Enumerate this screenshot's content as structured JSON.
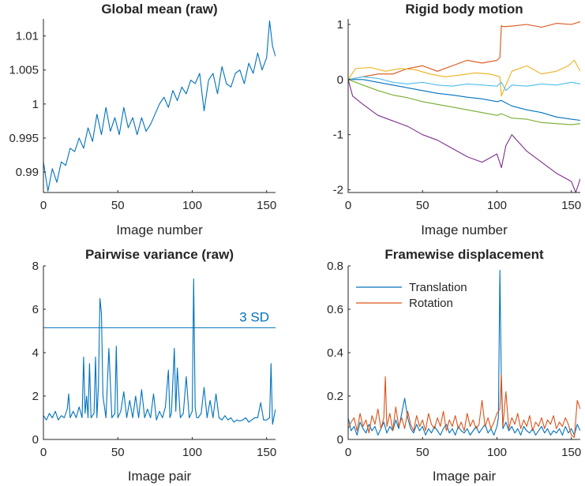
{
  "colors": {
    "blue": "#0072BD",
    "orange": "#D95319",
    "yellow": "#EDB120",
    "purple": "#7E2F8E",
    "green": "#77AC30",
    "lightblue": "#4DBEEE",
    "axis": "#262626"
  },
  "chart_data": [
    {
      "id": "global-mean",
      "type": "line",
      "title": "Global mean (raw)",
      "xlabel": "Image number",
      "ylabel": "",
      "xlim": [
        0,
        156
      ],
      "ylim": [
        0.987,
        1.0125
      ],
      "xticks": [
        0,
        50,
        100,
        150
      ],
      "xtick_labels": [
        "0",
        "50",
        "100",
        "150"
      ],
      "yticks": [
        0.99,
        0.995,
        1,
        1.005,
        1.01
      ],
      "ytick_labels": [
        "0.99",
        "0.995",
        "1",
        "1.005",
        "1.01"
      ],
      "series": [
        {
          "color": "#0072BD",
          "x": [
            0,
            3,
            6,
            9,
            12,
            15,
            18,
            21,
            24,
            27,
            30,
            33,
            36,
            39,
            42,
            45,
            48,
            51,
            54,
            57,
            60,
            63,
            66,
            69,
            72,
            75,
            78,
            81,
            84,
            87,
            90,
            93,
            96,
            99,
            102,
            105,
            108,
            111,
            114,
            117,
            120,
            123,
            126,
            129,
            132,
            135,
            138,
            141,
            144,
            147,
            150,
            152,
            154,
            156
          ],
          "y": [
            0.9915,
            0.9872,
            0.9905,
            0.9885,
            0.9915,
            0.991,
            0.9935,
            0.993,
            0.995,
            0.9935,
            0.9965,
            0.9945,
            0.9985,
            0.9955,
            0.9995,
            0.996,
            0.998,
            0.9955,
            0.9995,
            0.9965,
            0.998,
            0.9955,
            0.998,
            0.996,
            0.997,
            0.9985,
            1.0,
            1.001,
            0.9995,
            1.002,
            1.0005,
            1.0025,
            1.0015,
            1.0035,
            1.003,
            1.0045,
            0.999,
            1.0035,
            1.0045,
            1.0015,
            1.0055,
            1.003,
            1.0025,
            1.0045,
            1.005,
            1.003,
            1.006,
            1.0045,
            1.0075,
            1.005,
            1.0068,
            1.0122,
            1.0085,
            1.007
          ]
        }
      ]
    },
    {
      "id": "rigid-body-motion",
      "type": "line",
      "title": "Rigid body motion",
      "xlabel": "Image number",
      "ylabel": "",
      "xlim": [
        0,
        156
      ],
      "ylim": [
        -2.05,
        1.1
      ],
      "xticks": [
        0,
        50,
        100,
        150
      ],
      "xtick_labels": [
        "0",
        "50",
        "100",
        "150"
      ],
      "yticks": [
        1,
        0,
        -1,
        -2
      ],
      "ytick_labels": [
        "1",
        "0",
        "-1",
        "-2"
      ],
      "series": [
        {
          "color": "#0072BD",
          "x": [
            0,
            10,
            20,
            30,
            40,
            50,
            60,
            70,
            80,
            90,
            100,
            103,
            110,
            120,
            130,
            140,
            150,
            156
          ],
          "y": [
            0,
            0.0,
            -0.05,
            -0.1,
            -0.15,
            -0.2,
            -0.25,
            -0.28,
            -0.32,
            -0.35,
            -0.4,
            -0.38,
            -0.48,
            -0.55,
            -0.6,
            -0.68,
            -0.72,
            -0.74
          ]
        },
        {
          "color": "#D95319",
          "x": [
            0,
            10,
            20,
            30,
            40,
            50,
            60,
            70,
            80,
            90,
            100,
            102,
            103,
            104,
            110,
            120,
            130,
            140,
            150,
            156
          ],
          "y": [
            0,
            0.05,
            0.1,
            0.1,
            0.2,
            0.25,
            0.15,
            0.25,
            0.35,
            0.3,
            0.35,
            0.4,
            0.98,
            0.96,
            0.97,
            1.0,
            0.95,
            1.02,
            1.0,
            1.05
          ]
        },
        {
          "color": "#EDB120",
          "x": [
            0,
            5,
            15,
            25,
            35,
            45,
            55,
            65,
            75,
            85,
            95,
            102,
            103,
            106,
            110,
            120,
            130,
            140,
            148,
            152,
            156
          ],
          "y": [
            0,
            0.2,
            0.22,
            0.15,
            0.2,
            0.18,
            0.1,
            0.05,
            0.08,
            0.12,
            0.1,
            0.05,
            -0.3,
            -0.1,
            0.15,
            0.25,
            0.1,
            0.15,
            0.25,
            0.35,
            0.15
          ]
        },
        {
          "color": "#7E2F8E",
          "x": [
            0,
            3,
            10,
            20,
            30,
            40,
            50,
            60,
            70,
            80,
            90,
            100,
            103,
            106,
            110,
            115,
            120,
            130,
            140,
            150,
            153,
            156
          ],
          "y": [
            0,
            -0.3,
            -0.45,
            -0.65,
            -0.75,
            -0.85,
            -1.0,
            -1.1,
            -1.25,
            -1.4,
            -1.5,
            -1.35,
            -1.6,
            -1.2,
            -1.0,
            -1.15,
            -1.3,
            -1.5,
            -1.7,
            -1.85,
            -2.05,
            -1.8
          ]
        },
        {
          "color": "#77AC30",
          "x": [
            0,
            10,
            20,
            30,
            40,
            50,
            60,
            70,
            80,
            90,
            100,
            103,
            110,
            120,
            130,
            140,
            150,
            156
          ],
          "y": [
            0,
            -0.1,
            -0.2,
            -0.28,
            -0.33,
            -0.4,
            -0.45,
            -0.5,
            -0.55,
            -0.6,
            -0.65,
            -0.62,
            -0.7,
            -0.72,
            -0.78,
            -0.8,
            -0.82,
            -0.8
          ]
        },
        {
          "color": "#4DBEEE",
          "x": [
            0,
            10,
            20,
            30,
            40,
            50,
            60,
            70,
            80,
            90,
            100,
            103,
            106,
            110,
            120,
            130,
            140,
            150,
            156
          ],
          "y": [
            0,
            0.05,
            0.02,
            -0.05,
            -0.08,
            -0.05,
            -0.1,
            -0.12,
            -0.08,
            -0.1,
            -0.12,
            -0.05,
            -0.2,
            -0.1,
            -0.12,
            -0.08,
            -0.1,
            -0.05,
            -0.08
          ]
        }
      ]
    },
    {
      "id": "pairwise-variance",
      "type": "line",
      "title": "Pairwise variance (raw)",
      "xlabel": "Image pair",
      "ylabel": "",
      "xlim": [
        0,
        156
      ],
      "ylim": [
        0,
        8
      ],
      "xticks": [
        0,
        50,
        100,
        150
      ],
      "xtick_labels": [
        "0",
        "50",
        "100",
        "150"
      ],
      "yticks": [
        0,
        2,
        4,
        6,
        8
      ],
      "ytick_labels": [
        "0",
        "2",
        "4",
        "6",
        "8"
      ],
      "threshold": {
        "value": 5.15,
        "label": "3 SD"
      },
      "series": [
        {
          "color": "#0072BD",
          "x": [
            0,
            2,
            4,
            6,
            8,
            10,
            12,
            14,
            16,
            17,
            18,
            20,
            22,
            24,
            26,
            27,
            28,
            29,
            30,
            31,
            32,
            34,
            35,
            36,
            37,
            38,
            39,
            40,
            42,
            44,
            46,
            48,
            49,
            50,
            52,
            54,
            56,
            58,
            60,
            62,
            64,
            66,
            68,
            70,
            72,
            74,
            76,
            78,
            80,
            82,
            84,
            85,
            86,
            88,
            89,
            90,
            92,
            94,
            96,
            98,
            100,
            101,
            102,
            103,
            104,
            106,
            108,
            110,
            112,
            114,
            116,
            118,
            120,
            122,
            124,
            126,
            128,
            130,
            132,
            134,
            136,
            138,
            140,
            142,
            144,
            146,
            148,
            150,
            152,
            153,
            154,
            156
          ],
          "y": [
            1.1,
            0.9,
            1.2,
            1.0,
            1.3,
            0.9,
            1.1,
            1.0,
            1.4,
            2.1,
            1.0,
            1.3,
            1.0,
            1.5,
            1.0,
            3.8,
            1.2,
            2.0,
            1.0,
            3.5,
            1.0,
            1.2,
            3.8,
            1.0,
            2.5,
            6.5,
            5.8,
            2.0,
            1.0,
            4.2,
            1.0,
            1.2,
            4.3,
            1.0,
            1.3,
            2.2,
            1.0,
            1.8,
            1.0,
            2.0,
            1.0,
            2.3,
            1.0,
            1.4,
            1.0,
            2.1,
            0.9,
            1.3,
            1.0,
            1.5,
            3.2,
            1.0,
            1.2,
            4.2,
            1.3,
            3.3,
            1.0,
            1.2,
            2.9,
            1.0,
            1.3,
            7.4,
            1.5,
            1.0,
            1.0,
            1.2,
            2.4,
            1.0,
            1.8,
            1.0,
            2.1,
            1.0,
            0.9,
            1.1,
            0.9,
            1.0,
            0.8,
            0.9,
            0.85,
            0.9,
            1.0,
            0.8,
            0.9,
            1.0,
            1.0,
            1.7,
            0.9,
            0.9,
            1.0,
            3.5,
            0.7,
            1.4
          ]
        }
      ]
    },
    {
      "id": "framewise-displacement",
      "type": "line",
      "title": "Framewise displacement",
      "xlabel": "Image pair",
      "ylabel": "",
      "xlim": [
        0,
        156
      ],
      "ylim": [
        0,
        0.8
      ],
      "xticks": [
        0,
        50,
        100,
        150
      ],
      "xtick_labels": [
        "0",
        "50",
        "100",
        "150"
      ],
      "yticks": [
        0,
        0.2,
        0.4,
        0.6,
        0.8
      ],
      "ytick_labels": [
        "0",
        "0.2",
        "0.4",
        "0.6",
        "0.8"
      ],
      "legend": "top-left",
      "series": [
        {
          "name": "Translation",
          "color": "#0072BD",
          "x": [
            0,
            2,
            4,
            6,
            8,
            10,
            12,
            14,
            16,
            18,
            20,
            22,
            24,
            26,
            28,
            30,
            32,
            34,
            36,
            38,
            40,
            42,
            44,
            46,
            48,
            50,
            52,
            54,
            56,
            58,
            60,
            62,
            64,
            66,
            68,
            70,
            72,
            74,
            76,
            78,
            80,
            82,
            84,
            86,
            88,
            90,
            92,
            94,
            96,
            98,
            100,
            101,
            102,
            103,
            104,
            106,
            108,
            110,
            112,
            114,
            116,
            118,
            120,
            122,
            124,
            126,
            128,
            130,
            132,
            134,
            136,
            138,
            140,
            142,
            144,
            146,
            148,
            150,
            152,
            154,
            156
          ],
          "y": [
            0.1,
            0.04,
            0.06,
            0.02,
            0.08,
            0.05,
            0.03,
            0.07,
            0.04,
            0.06,
            0.02,
            0.05,
            0.08,
            0.03,
            0.06,
            0.04,
            0.09,
            0.05,
            0.12,
            0.19,
            0.1,
            0.05,
            0.03,
            0.07,
            0.04,
            0.06,
            0.02,
            0.05,
            0.03,
            0.06,
            0.04,
            0.02,
            0.05,
            0.07,
            0.03,
            0.05,
            0.02,
            0.06,
            0.04,
            0.03,
            0.05,
            0.02,
            0.04,
            0.06,
            0.03,
            0.05,
            0.07,
            0.03,
            0.05,
            0.02,
            0.06,
            0.1,
            0.78,
            0.25,
            0.05,
            0.08,
            0.04,
            0.06,
            0.03,
            0.05,
            0.02,
            0.06,
            0.04,
            0.03,
            0.05,
            0.02,
            0.04,
            0.06,
            0.03,
            0.05,
            0.02,
            0.04,
            0.03,
            0.05,
            0.02,
            0.06,
            0.03,
            0.05,
            0.02,
            0.07,
            0.04
          ]
        },
        {
          "name": "Rotation",
          "color": "#D95319",
          "x": [
            0,
            2,
            4,
            6,
            8,
            10,
            12,
            14,
            16,
            18,
            20,
            22,
            24,
            25,
            26,
            28,
            30,
            32,
            34,
            36,
            38,
            40,
            42,
            44,
            46,
            48,
            50,
            52,
            54,
            56,
            58,
            60,
            62,
            64,
            66,
            68,
            70,
            72,
            74,
            76,
            78,
            80,
            82,
            84,
            86,
            88,
            90,
            92,
            94,
            96,
            98,
            100,
            102,
            103,
            104,
            106,
            108,
            110,
            112,
            114,
            116,
            118,
            120,
            122,
            124,
            126,
            128,
            130,
            132,
            134,
            136,
            138,
            140,
            142,
            144,
            146,
            148,
            150,
            152,
            154,
            156
          ],
          "y": [
            0.05,
            0.08,
            0.1,
            0.04,
            0.12,
            0.06,
            0.09,
            0.03,
            0.11,
            0.07,
            0.14,
            0.05,
            0.1,
            0.29,
            0.06,
            0.12,
            0.04,
            0.15,
            0.06,
            0.1,
            0.05,
            0.13,
            0.07,
            0.04,
            0.11,
            0.06,
            0.09,
            0.04,
            0.12,
            0.07,
            0.05,
            0.1,
            0.06,
            0.13,
            0.04,
            0.09,
            0.06,
            0.11,
            0.05,
            0.08,
            0.04,
            0.12,
            0.06,
            0.09,
            0.05,
            0.07,
            0.18,
            0.06,
            0.1,
            0.05,
            0.08,
            0.12,
            0.14,
            0.3,
            0.06,
            0.22,
            0.05,
            0.1,
            0.07,
            0.12,
            0.05,
            0.09,
            0.06,
            0.11,
            0.04,
            0.08,
            0.06,
            0.1,
            0.05,
            0.09,
            0.07,
            0.11,
            0.05,
            0.08,
            0.06,
            0.1,
            0.07,
            0.02,
            0.01,
            0.18,
            0.14
          ]
        }
      ]
    }
  ]
}
